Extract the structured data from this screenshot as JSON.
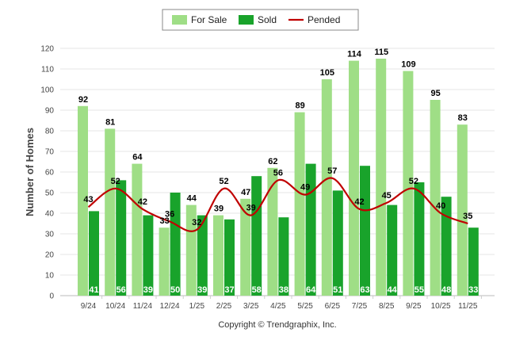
{
  "chart_data": {
    "type": "bar",
    "categories": [
      "9/24",
      "10/24",
      "11/24",
      "12/24",
      "1/25",
      "2/25",
      "3/25",
      "4/25",
      "5/25",
      "6/25",
      "7/25",
      "8/25",
      "9/25",
      "10/25",
      "11/25"
    ],
    "series": [
      {
        "name": "For Sale",
        "type": "bar",
        "color": "#9fde86",
        "values": [
          92,
          81,
          64,
          33,
          44,
          39,
          47,
          62,
          89,
          105,
          114,
          115,
          109,
          95,
          83
        ]
      },
      {
        "name": "Sold",
        "type": "bar",
        "color": "#19a32b",
        "values": [
          41,
          56,
          39,
          50,
          39,
          37,
          58,
          38,
          64,
          51,
          63,
          44,
          55,
          48,
          33
        ]
      },
      {
        "name": "Pended",
        "type": "line",
        "color": "#c00000",
        "values": [
          43,
          52,
          42,
          36,
          32,
          52,
          39,
          56,
          49,
          57,
          42,
          45,
          52,
          40,
          35
        ]
      }
    ],
    "ylabel": "Number of Homes",
    "ylim": [
      0,
      120
    ],
    "yticks": [
      0,
      10,
      20,
      30,
      40,
      50,
      60,
      70,
      80,
      90,
      100,
      110,
      120
    ],
    "grid": true,
    "legend_position": "top-center",
    "copyright": "Copyright © Trendgraphix, Inc."
  }
}
